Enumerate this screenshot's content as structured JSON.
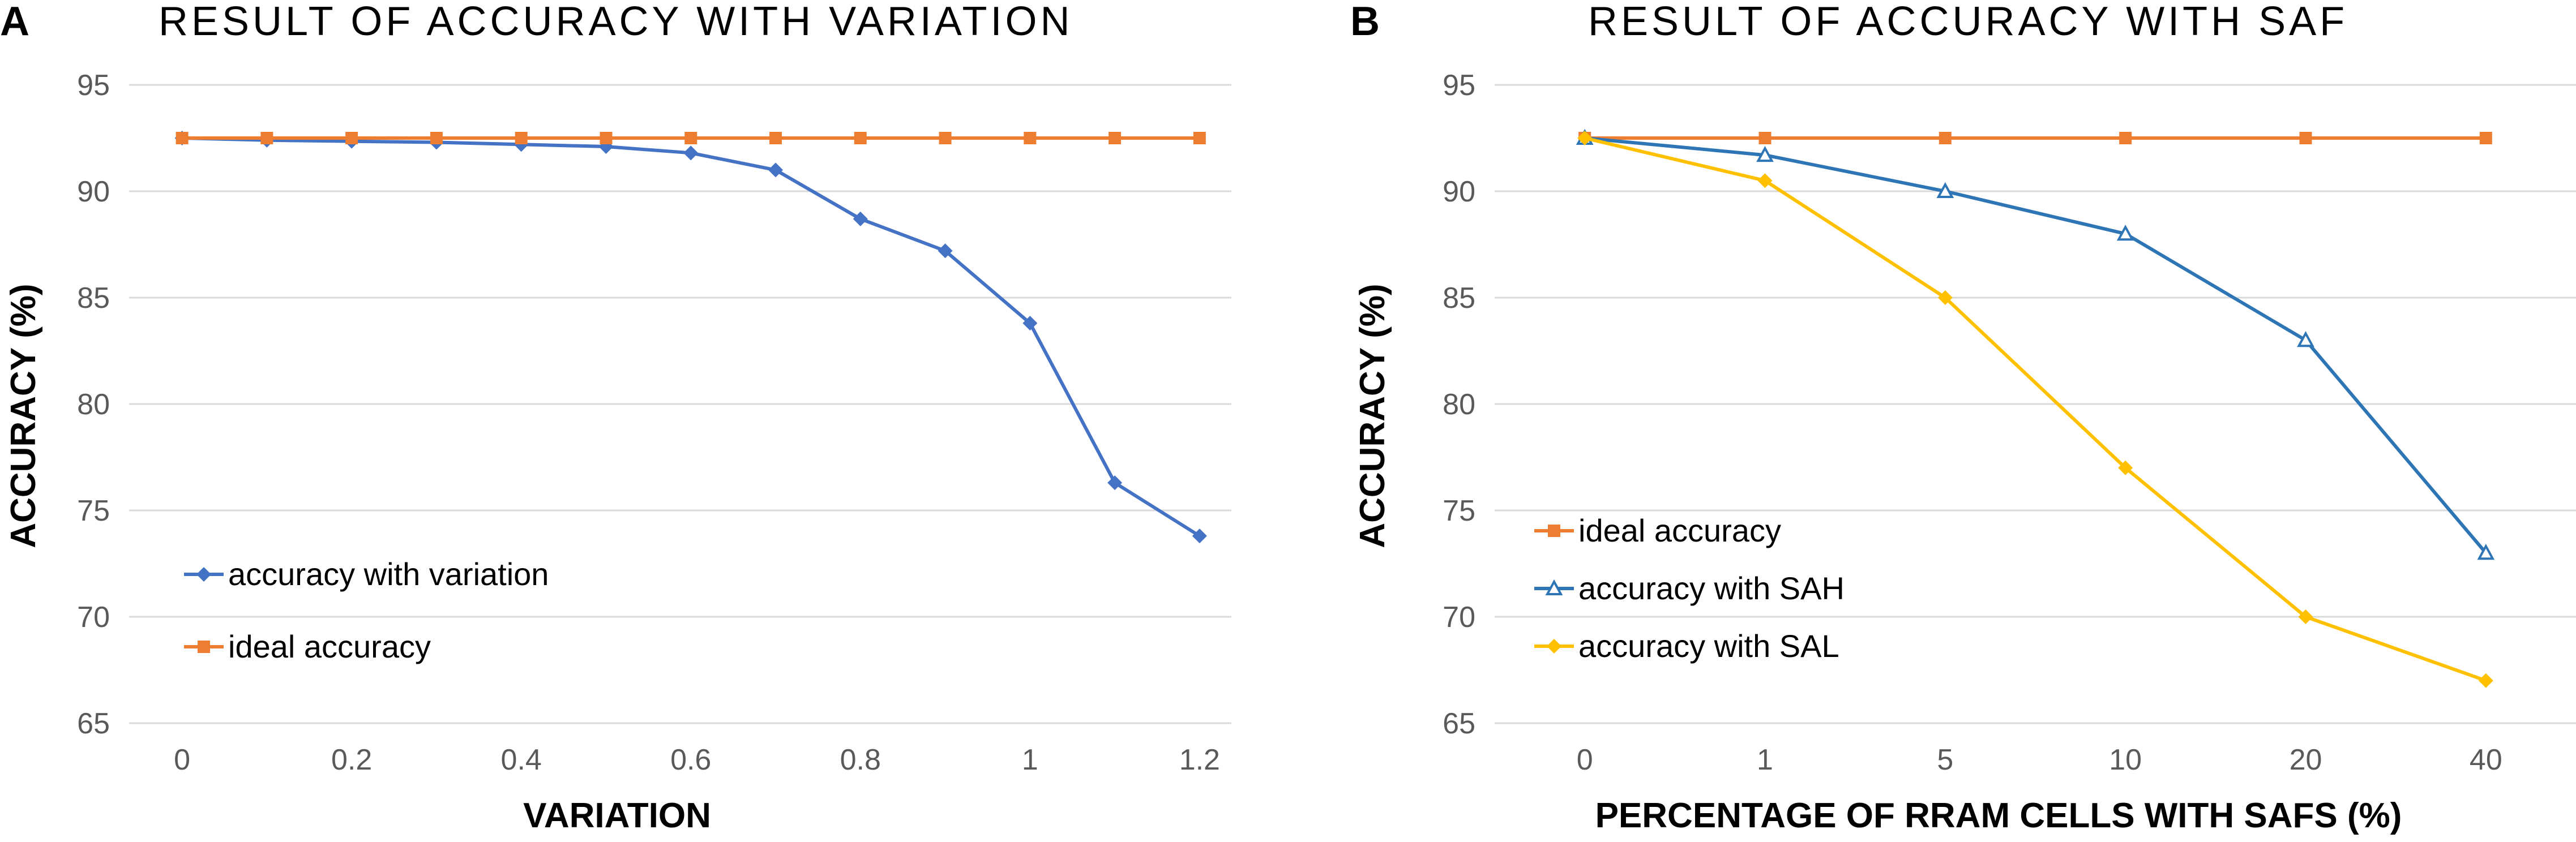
{
  "chart_data": [
    {
      "panel": "A",
      "type": "line",
      "title": "RESULT OF ACCURACY WITH VARIATION",
      "xlabel": "VARIATION",
      "ylabel": "ACCURACY (%)",
      "ylim": [
        65,
        95
      ],
      "yticks": [
        65,
        70,
        75,
        80,
        85,
        90,
        95
      ],
      "xscale": "numeric",
      "xlim": [
        -0.0625,
        1.2375
      ],
      "xticks": [
        0,
        0.2,
        0.4,
        0.6,
        0.8,
        1,
        1.2
      ],
      "xtick_labels": [
        "0",
        "0.2",
        "0.4",
        "0.6",
        "0.8",
        "1",
        "1.2"
      ],
      "grid": true,
      "legend_position": "lower-left",
      "series": [
        {
          "name": "accuracy with variation",
          "color": "#4472c4",
          "marker": "diamond",
          "x": [
            0,
            0.1,
            0.2,
            0.3,
            0.4,
            0.5,
            0.6,
            0.7,
            0.8,
            0.9,
            1.0,
            1.1,
            1.2
          ],
          "values": [
            92.5,
            92.4,
            92.35,
            92.3,
            92.2,
            92.1,
            91.8,
            91.0,
            88.7,
            87.2,
            83.8,
            76.3,
            73.8
          ]
        },
        {
          "name": "ideal accuracy",
          "color": "#ed7d31",
          "marker": "square",
          "x": [
            0,
            0.1,
            0.2,
            0.3,
            0.4,
            0.5,
            0.6,
            0.7,
            0.8,
            0.9,
            1.0,
            1.1,
            1.2
          ],
          "values": [
            92.5,
            92.5,
            92.5,
            92.5,
            92.5,
            92.5,
            92.5,
            92.5,
            92.5,
            92.5,
            92.5,
            92.5,
            92.5
          ]
        }
      ]
    },
    {
      "panel": "B",
      "type": "line",
      "title": "RESULT OF ACCURACY WITH SAF",
      "xlabel": "PERCENTAGE OF RRAM CELLS WITH SAFS (%)",
      "ylabel": "ACCURACY (%)",
      "ylim": [
        65,
        95
      ],
      "yticks": [
        65,
        70,
        75,
        80,
        85,
        90,
        95
      ],
      "xscale": "category",
      "categories": [
        "0",
        "1",
        "5",
        "10",
        "20",
        "40"
      ],
      "grid": true,
      "legend_position": "lower-left",
      "series": [
        {
          "name": "ideal accuracy",
          "color": "#ed7d31",
          "marker": "square",
          "values": [
            92.5,
            92.5,
            92.5,
            92.5,
            92.5,
            92.5
          ]
        },
        {
          "name": "accuracy with SAH",
          "color": "#2e75b6",
          "marker": "triangle",
          "values": [
            92.5,
            91.7,
            90.0,
            88.0,
            83.0,
            73.0
          ]
        },
        {
          "name": "accuracy with SAL",
          "color": "#ffc000",
          "marker": "diamond",
          "values": [
            92.5,
            90.5,
            85.0,
            77.0,
            70.0,
            67.0
          ]
        }
      ]
    }
  ]
}
